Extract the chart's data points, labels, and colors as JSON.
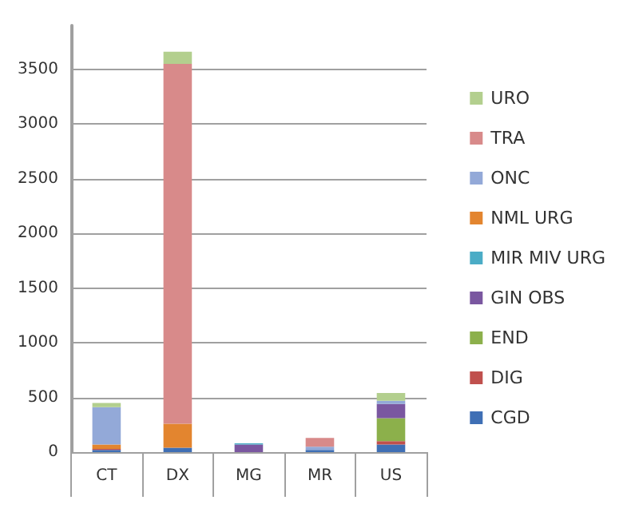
{
  "chart_data": {
    "type": "bar",
    "stacked": true,
    "categories": [
      "CT",
      "DX",
      "MG",
      "MR",
      "US"
    ],
    "series": [
      {
        "name": "CGD",
        "color": "#3f6fb5",
        "values": [
          20,
          40,
          0,
          20,
          70
        ]
      },
      {
        "name": "DIG",
        "color": "#c0504d",
        "values": [
          10,
          0,
          0,
          0,
          30
        ]
      },
      {
        "name": "END",
        "color": "#8cb04b",
        "values": [
          0,
          0,
          0,
          0,
          210
        ]
      },
      {
        "name": "GIN OBS",
        "color": "#7a57a0",
        "values": [
          0,
          0,
          70,
          0,
          130
        ]
      },
      {
        "name": "MIR MIV URG",
        "color": "#4bacc6",
        "values": [
          0,
          0,
          10,
          0,
          0
        ]
      },
      {
        "name": "NML URG",
        "color": "#e3852f",
        "values": [
          40,
          220,
          0,
          0,
          0
        ]
      },
      {
        "name": "ONC",
        "color": "#93a9d8",
        "values": [
          340,
          0,
          0,
          30,
          30
        ]
      },
      {
        "name": "TRA",
        "color": "#d88a8a",
        "values": [
          0,
          3290,
          0,
          80,
          0
        ]
      },
      {
        "name": "URO",
        "color": "#b3cf8e",
        "values": [
          40,
          110,
          0,
          0,
          70
        ]
      }
    ],
    "ylim": [
      0,
      3900
    ],
    "yticks": [
      0,
      500,
      1000,
      1500,
      2000,
      2500,
      3000,
      3500
    ],
    "grid": "y",
    "legend": "right"
  }
}
